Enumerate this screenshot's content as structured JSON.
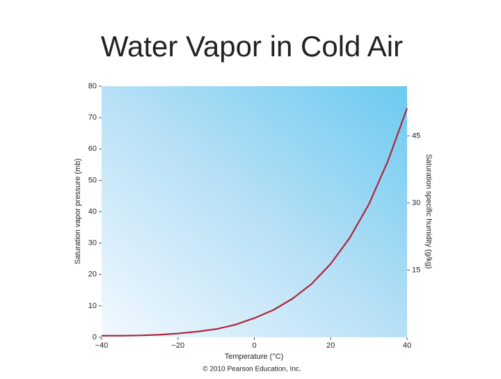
{
  "chart_data": {
    "type": "line",
    "title": "Water Vapor in Cold Air",
    "xlabel": "Temperature (°C)",
    "ylabel": "Saturation vapor pressure (mb)",
    "y2label": "Saturation specific humidity (g/kg)",
    "footnote": "© 2010 Pearson Education, Inc.",
    "x": [
      -40,
      -35,
      -30,
      -25,
      -20,
      -15,
      -10,
      -5,
      0,
      5,
      10,
      15,
      20,
      25,
      30,
      35,
      40
    ],
    "series": [
      {
        "name": "Saturation vapor pressure",
        "color": "#b0243a",
        "values": [
          0.5,
          0.5,
          0.6,
          0.8,
          1.2,
          1.8,
          2.6,
          4.0,
          6.1,
          8.7,
          12.3,
          17.0,
          23.4,
          31.7,
          42.4,
          56.2,
          73.0
        ]
      }
    ],
    "xlim": [
      -40,
      40
    ],
    "xticks": [
      {
        "value": -40,
        "label": "−40"
      },
      {
        "value": -20,
        "label": "−20"
      },
      0,
      20,
      40
    ],
    "ylim": [
      0,
      80
    ],
    "yticks": [
      0,
      10,
      20,
      30,
      40,
      50,
      60,
      70,
      80
    ],
    "y2lim": [
      0,
      56.1
    ],
    "y2ticks": [
      15,
      30,
      45
    ]
  }
}
